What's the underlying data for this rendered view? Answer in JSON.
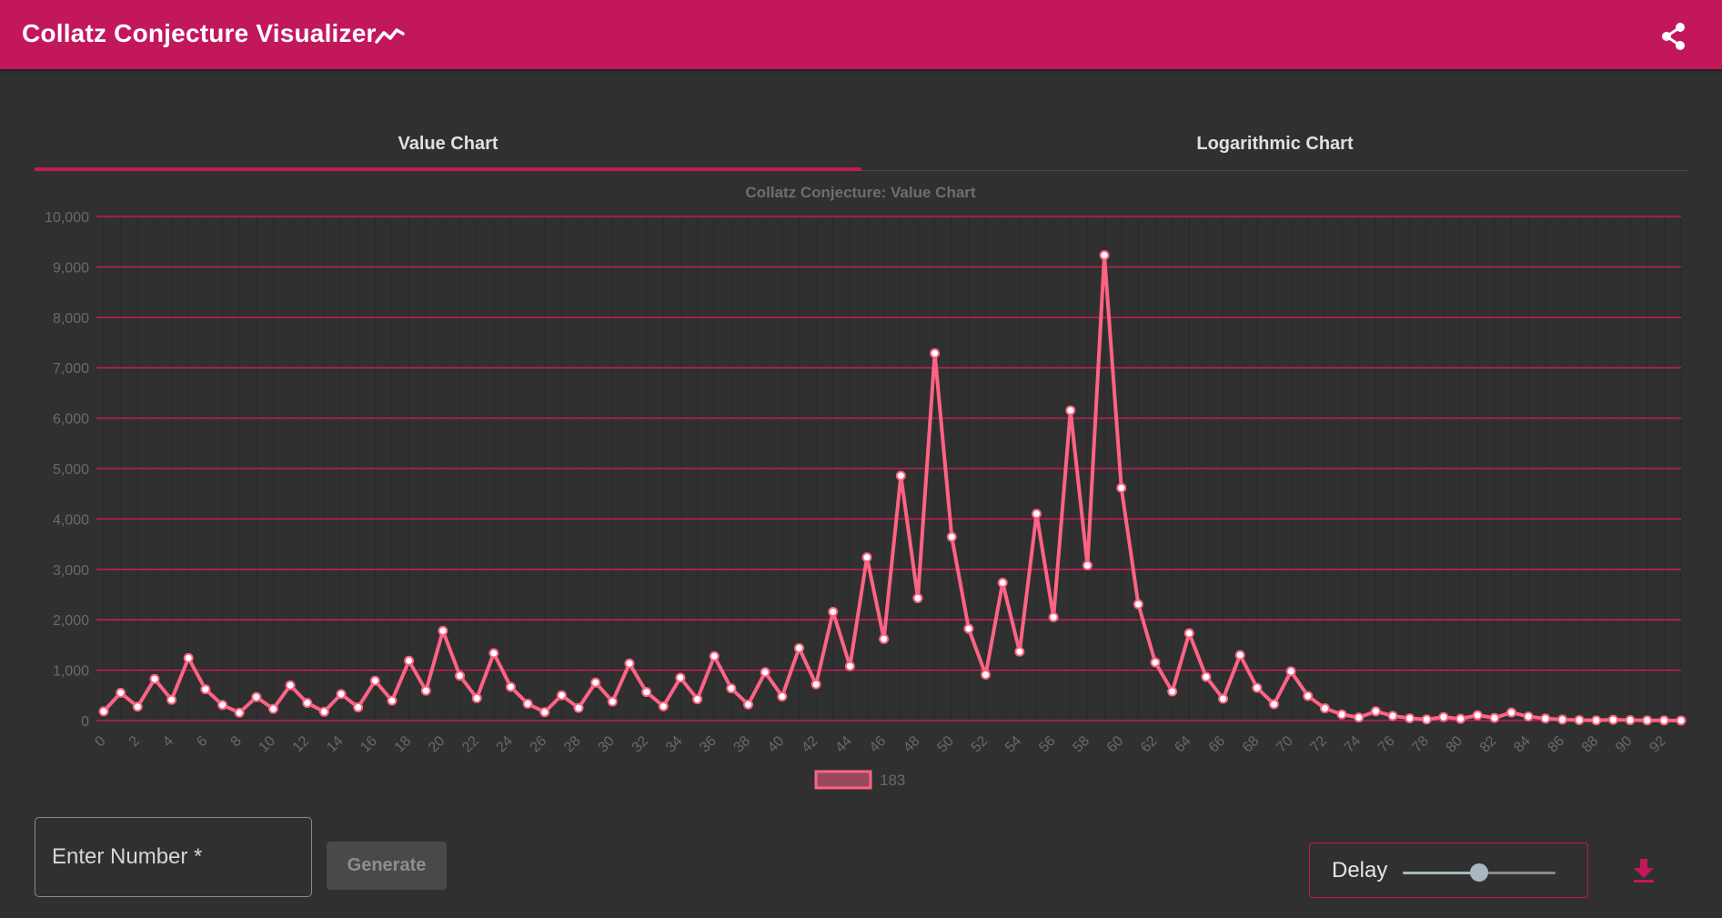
{
  "app": {
    "title": "Collatz Conjecture Visualizer"
  },
  "colors": {
    "accent": "#c2185b",
    "line": "#ff6384",
    "background": "#303030"
  },
  "icons": {
    "title_icon": "trending-up-icon",
    "share": "share-icon",
    "download": "download-icon"
  },
  "tabs": [
    {
      "label": "Value Chart",
      "active": true
    },
    {
      "label": "Logarithmic Chart",
      "active": false
    }
  ],
  "controls": {
    "number_placeholder": "Enter Number *",
    "number_value": "",
    "generate_label": "Generate",
    "delay_label": "Delay",
    "delay_value": 0.5
  },
  "chart_data": {
    "type": "line",
    "title": "Collatz Conjecture: Value Chart",
    "legend": [
      {
        "label": "183"
      }
    ],
    "legend_position": "bottom",
    "grid": true,
    "xlabel": "",
    "ylabel": "",
    "ylim": [
      0,
      10000
    ],
    "yticks": [
      0,
      1000,
      2000,
      3000,
      4000,
      5000,
      6000,
      7000,
      8000,
      9000,
      10000
    ],
    "xtick_step": 2,
    "series": [
      {
        "name": "183",
        "values": [
          183,
          550,
          275,
          826,
          413,
          1240,
          620,
          310,
          155,
          466,
          233,
          700,
          350,
          175,
          526,
          263,
          790,
          395,
          1186,
          593,
          1780,
          890,
          445,
          1336,
          668,
          334,
          167,
          502,
          251,
          754,
          377,
          1132,
          566,
          283,
          850,
          425,
          1276,
          638,
          319,
          958,
          479,
          1438,
          719,
          2158,
          1079,
          3238,
          1619,
          4858,
          2429,
          7288,
          3644,
          1822,
          911,
          2734,
          1367,
          4102,
          2051,
          6154,
          3077,
          9232,
          4616,
          2308,
          1154,
          577,
          1732,
          866,
          433,
          1300,
          650,
          325,
          976,
          488,
          244,
          122,
          61,
          184,
          92,
          46,
          23,
          70,
          35,
          106,
          53,
          160,
          80,
          40,
          20,
          10,
          5,
          16,
          8,
          4,
          2,
          1
        ]
      }
    ]
  }
}
